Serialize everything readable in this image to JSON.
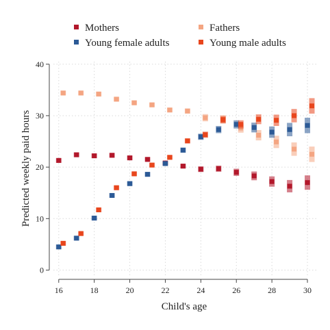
{
  "chart_data": {
    "type": "scatter",
    "xlabel": "Child's age",
    "ylabel": "Predicted weekly paid hours",
    "xlim": [
      15.7,
      30.5
    ],
    "ylim": [
      -1,
      40.5
    ],
    "xticks": [
      16,
      18,
      20,
      22,
      24,
      26,
      28,
      30
    ],
    "yticks": [
      0,
      10,
      20,
      30,
      40
    ],
    "grid": true,
    "legend_position": "top",
    "series": [
      {
        "name": "Mothers",
        "color": "#b2182b",
        "offset": 0,
        "points": [
          {
            "x": 16,
            "y": 21.3,
            "err": 0.25
          },
          {
            "x": 17,
            "y": 22.4,
            "err": 0.25
          },
          {
            "x": 18,
            "y": 22.2,
            "err": 0.25
          },
          {
            "x": 19,
            "y": 22.3,
            "err": 0.25
          },
          {
            "x": 20,
            "y": 21.8,
            "err": 0.3
          },
          {
            "x": 21,
            "y": 21.5,
            "err": 0.35
          },
          {
            "x": 22,
            "y": 20.8,
            "err": 0.4
          },
          {
            "x": 23,
            "y": 20.2,
            "err": 0.45
          },
          {
            "x": 24,
            "y": 19.6,
            "err": 0.55
          },
          {
            "x": 25,
            "y": 19.7,
            "err": 0.6
          },
          {
            "x": 26,
            "y": 19.0,
            "err": 0.7
          },
          {
            "x": 27,
            "y": 18.3,
            "err": 0.85
          },
          {
            "x": 28,
            "y": 17.2,
            "err": 1.0
          },
          {
            "x": 29,
            "y": 16.3,
            "err": 1.2
          },
          {
            "x": 30,
            "y": 17.0,
            "err": 1.4
          }
        ]
      },
      {
        "name": "Fathers",
        "color": "#f4a582",
        "offset": 0.25,
        "points": [
          {
            "x": 16,
            "y": 34.4,
            "err": 0.25
          },
          {
            "x": 17,
            "y": 34.4,
            "err": 0.25
          },
          {
            "x": 18,
            "y": 34.2,
            "err": 0.25
          },
          {
            "x": 19,
            "y": 33.2,
            "err": 0.3
          },
          {
            "x": 20,
            "y": 32.5,
            "err": 0.3
          },
          {
            "x": 21,
            "y": 32.1,
            "err": 0.35
          },
          {
            "x": 22,
            "y": 31.1,
            "err": 0.4
          },
          {
            "x": 23,
            "y": 30.9,
            "err": 0.5
          },
          {
            "x": 24,
            "y": 29.6,
            "err": 0.7
          },
          {
            "x": 25,
            "y": 29.3,
            "err": 0.8
          },
          {
            "x": 26,
            "y": 27.6,
            "err": 0.9
          },
          {
            "x": 27,
            "y": 26.2,
            "err": 1.0
          },
          {
            "x": 28,
            "y": 24.9,
            "err": 1.2
          },
          {
            "x": 29,
            "y": 23.5,
            "err": 1.3
          },
          {
            "x": 30,
            "y": 22.5,
            "err": 1.5
          }
        ]
      },
      {
        "name": "Young female adults",
        "color": "#2c5a96",
        "offset": 0,
        "points": [
          {
            "x": 16,
            "y": 4.5,
            "err": 0.25
          },
          {
            "x": 17,
            "y": 6.2,
            "err": 0.25
          },
          {
            "x": 18,
            "y": 10.1,
            "err": 0.25
          },
          {
            "x": 19,
            "y": 14.5,
            "err": 0.3
          },
          {
            "x": 20,
            "y": 16.8,
            "err": 0.35
          },
          {
            "x": 21,
            "y": 18.6,
            "err": 0.4
          },
          {
            "x": 22,
            "y": 20.7,
            "err": 0.45
          },
          {
            "x": 23,
            "y": 23.3,
            "err": 0.5
          },
          {
            "x": 24,
            "y": 25.9,
            "err": 0.6
          },
          {
            "x": 25,
            "y": 27.3,
            "err": 0.7
          },
          {
            "x": 26,
            "y": 28.3,
            "err": 0.8
          },
          {
            "x": 27,
            "y": 27.7,
            "err": 0.95
          },
          {
            "x": 28,
            "y": 26.8,
            "err": 1.1
          },
          {
            "x": 29,
            "y": 27.3,
            "err": 1.3
          },
          {
            "x": 30,
            "y": 28.1,
            "err": 1.5
          }
        ]
      },
      {
        "name": "Young male adults",
        "color": "#e8461d",
        "offset": 0.25,
        "points": [
          {
            "x": 16,
            "y": 5.2,
            "err": 0.25
          },
          {
            "x": 17,
            "y": 7.1,
            "err": 0.25
          },
          {
            "x": 18,
            "y": 11.7,
            "err": 0.25
          },
          {
            "x": 19,
            "y": 16.0,
            "err": 0.3
          },
          {
            "x": 20,
            "y": 18.7,
            "err": 0.35
          },
          {
            "x": 21,
            "y": 20.4,
            "err": 0.4
          },
          {
            "x": 22,
            "y": 21.9,
            "err": 0.45
          },
          {
            "x": 23,
            "y": 25.1,
            "err": 0.5
          },
          {
            "x": 24,
            "y": 26.3,
            "err": 0.6
          },
          {
            "x": 25,
            "y": 29.2,
            "err": 0.7
          },
          {
            "x": 26,
            "y": 28.3,
            "err": 0.8
          },
          {
            "x": 27,
            "y": 29.3,
            "err": 0.95
          },
          {
            "x": 28,
            "y": 29.1,
            "err": 1.1
          },
          {
            "x": 29,
            "y": 30.0,
            "err": 1.3
          },
          {
            "x": 30,
            "y": 31.9,
            "err": 1.5
          }
        ]
      }
    ]
  }
}
